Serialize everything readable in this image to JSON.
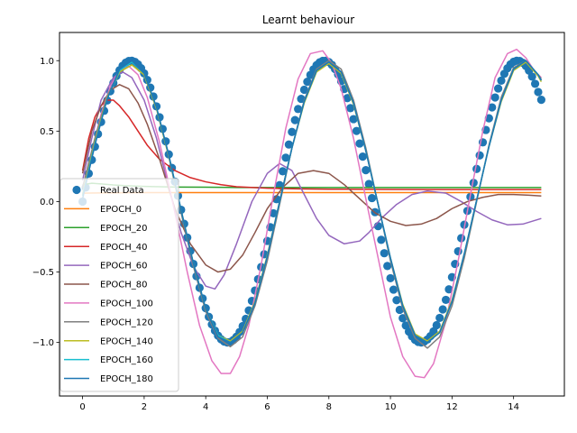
{
  "chart_data": {
    "type": "line",
    "title": "Learnt behaviour",
    "xlabel": "",
    "ylabel": "",
    "xlim": [
      -0.75,
      15.65
    ],
    "ylim": [
      -1.38,
      1.2
    ],
    "grid": false,
    "legend_position": "lower-left",
    "x_ticks": [
      0,
      2,
      4,
      6,
      8,
      10,
      12,
      14
    ],
    "y_ticks": [
      -1.0,
      -0.5,
      0.0,
      0.5,
      1.0
    ],
    "x_tick_labels": [
      "0",
      "2",
      "4",
      "6",
      "8",
      "10",
      "12",
      "14"
    ],
    "y_tick_labels": [
      "−1.0",
      "−0.5",
      "0.0",
      "0.5",
      "1.0"
    ],
    "real_data": {
      "name": "Real Data",
      "color": "#1f77b4",
      "x": [
        0,
        0.1,
        0.2,
        0.3,
        0.4,
        0.5,
        0.6,
        0.7,
        0.8,
        0.9,
        1,
        1.1,
        1.2,
        1.3,
        1.4,
        1.5,
        1.6,
        1.7,
        1.8,
        1.9,
        2,
        2.1,
        2.2,
        2.3,
        2.4,
        2.5,
        2.6,
        2.7,
        2.8,
        2.9,
        3,
        3.1,
        3.2,
        3.3,
        3.4,
        3.5,
        3.6,
        3.7,
        3.8,
        3.9,
        4,
        4.1,
        4.2,
        4.3,
        4.4,
        4.5,
        4.6,
        4.7,
        4.8,
        4.9,
        5,
        5.1,
        5.2,
        5.3,
        5.4,
        5.5,
        5.6,
        5.7,
        5.8,
        5.9,
        6,
        6.1,
        6.2,
        6.3,
        6.4,
        6.5,
        6.6,
        6.7,
        6.8,
        6.9,
        7,
        7.1,
        7.2,
        7.3,
        7.4,
        7.5,
        7.6,
        7.7,
        7.8,
        7.9,
        8,
        8.1,
        8.2,
        8.3,
        8.4,
        8.5,
        8.6,
        8.7,
        8.8,
        8.9,
        9,
        9.1,
        9.2,
        9.3,
        9.4,
        9.5,
        9.6,
        9.7,
        9.8,
        9.9,
        10,
        10.1,
        10.2,
        10.3,
        10.4,
        10.5,
        10.6,
        10.7,
        10.8,
        10.9,
        11,
        11.1,
        11.2,
        11.3,
        11.4,
        11.5,
        11.6,
        11.7,
        11.8,
        11.9,
        12,
        12.1,
        12.2,
        12.3,
        12.4,
        12.5,
        12.6,
        12.7,
        12.8,
        12.9,
        13,
        13.1,
        13.2,
        13.3,
        13.4,
        13.5,
        13.6,
        13.7,
        13.8,
        13.9,
        14,
        14.1,
        14.2,
        14.3,
        14.4,
        14.5,
        14.6,
        14.7,
        14.8,
        14.9
      ],
      "y": [
        0,
        0.0998,
        0.1987,
        0.2955,
        0.3894,
        0.4794,
        0.5646,
        0.6442,
        0.7174,
        0.7833,
        0.8415,
        0.8912,
        0.932,
        0.9636,
        0.9854,
        0.9975,
        0.9996,
        0.9917,
        0.9738,
        0.9463,
        0.9093,
        0.8632,
        0.8085,
        0.7457,
        0.6755,
        0.5985,
        0.5155,
        0.4274,
        0.335,
        0.2392,
        0.1411,
        0.0416,
        -0.0584,
        -0.1577,
        -0.2555,
        -0.3508,
        -0.4425,
        -0.5298,
        -0.6119,
        -0.6878,
        -0.7568,
        -0.8183,
        -0.8716,
        -0.9162,
        -0.9516,
        -0.9775,
        -0.9937,
        -0.9999,
        -0.9962,
        -0.9825,
        -0.9589,
        -0.9258,
        -0.8835,
        -0.8323,
        -0.7728,
        -0.7055,
        -0.6313,
        -0.5507,
        -0.4646,
        -0.3739,
        -0.2794,
        -0.1822,
        -0.0831,
        0.0168,
        0.1165,
        0.2151,
        0.3115,
        0.4048,
        0.4941,
        0.5784,
        0.657,
        0.729,
        0.7937,
        0.8504,
        0.8987,
        0.938,
        0.9679,
        0.9882,
        0.9985,
        0.9989,
        0.9894,
        0.9699,
        0.9407,
        0.9022,
        0.8546,
        0.7985,
        0.7344,
        0.663,
        0.585,
        0.501,
        0.4121,
        0.319,
        0.2229,
        0.1245,
        0.0248,
        -0.0752,
        -0.1743,
        -0.2718,
        -0.3665,
        -0.4575,
        -0.544,
        -0.6251,
        -0.7,
        -0.7683,
        -0.8278,
        -0.8797,
        -0.9233,
        -0.9568,
        -0.9812,
        -0.9961,
        -1,
        -0.9938,
        -0.9792,
        -0.9552,
        -0.9211,
        -0.8775,
        -0.8258,
        -0.7656,
        -0.6977,
        -0.6229,
        -0.5366,
        -0.4426,
        -0.3528,
        -0.2598,
        -0.1646,
        -0.0663,
        0.0336,
        0.133,
        0.2316,
        0.3276,
        0.4202,
        0.5082,
        0.5911,
        0.6684,
        0.7388,
        0.8026,
        0.8585,
        0.9068,
        0.9454,
        0.9741,
        0.9919,
        0.9996,
        0.9978,
        0.9849,
        0.9621,
        0.9293,
        0.8868,
        0.8356,
        0.7776,
        0.7225
      ]
    },
    "series": [
      {
        "name": "EPOCH_0",
        "color": "#ff7f0e",
        "x": [
          0,
          0.5,
          1,
          1.5,
          2,
          3,
          4,
          5,
          6,
          7,
          8,
          9,
          10,
          11,
          12,
          13,
          14,
          14.9
        ],
        "y": [
          0.06,
          0.061,
          0.062,
          0.063,
          0.064,
          0.064,
          0.064,
          0.064,
          0.064,
          0.064,
          0.064,
          0.064,
          0.064,
          0.064,
          0.064,
          0.064,
          0.064,
          0.064
        ]
      },
      {
        "name": "EPOCH_20",
        "color": "#2ca02c",
        "x": [
          0,
          0.3,
          0.6,
          1,
          1.5,
          2,
          2.5,
          3,
          4,
          5,
          6,
          8,
          10,
          12,
          14,
          14.9
        ],
        "y": [
          0.12,
          0.13,
          0.125,
          0.118,
          0.112,
          0.108,
          0.105,
          0.103,
          0.102,
          0.1,
          0.1,
          0.1,
          0.1,
          0.1,
          0.1,
          0.1
        ]
      },
      {
        "name": "EPOCH_40",
        "color": "#d62728",
        "x": [
          0,
          0.2,
          0.4,
          0.6,
          0.8,
          1.0,
          1.2,
          1.5,
          1.8,
          2.1,
          2.5,
          3,
          3.5,
          4,
          4.5,
          5,
          6,
          7,
          8,
          9,
          10,
          12,
          14,
          14.9
        ],
        "y": [
          0.22,
          0.45,
          0.6,
          0.68,
          0.72,
          0.72,
          0.68,
          0.6,
          0.5,
          0.4,
          0.3,
          0.22,
          0.17,
          0.14,
          0.12,
          0.105,
          0.095,
          0.09,
          0.088,
          0.087,
          0.086,
          0.085,
          0.085,
          0.085
        ]
      },
      {
        "name": "EPOCH_60",
        "color": "#9467bd",
        "x": [
          0,
          0.3,
          0.6,
          1.0,
          1.3,
          1.6,
          2.0,
          2.4,
          2.8,
          3.2,
          3.6,
          4.0,
          4.3,
          4.6,
          5.0,
          5.5,
          6.0,
          6.4,
          6.8,
          7.2,
          7.6,
          8.0,
          8.5,
          9.0,
          9.3,
          9.7,
          10.2,
          10.7,
          11.2,
          11.8,
          12.3,
          12.8,
          13.3,
          13.8,
          14.3,
          14.9
        ],
        "y": [
          0.15,
          0.45,
          0.72,
          0.88,
          0.92,
          0.88,
          0.72,
          0.45,
          0.1,
          -0.22,
          -0.46,
          -0.6,
          -0.62,
          -0.52,
          -0.3,
          0.0,
          0.2,
          0.27,
          0.22,
          0.05,
          -0.12,
          -0.24,
          -0.3,
          -0.28,
          -0.22,
          -0.12,
          -0.02,
          0.05,
          0.075,
          0.06,
          0.0,
          -0.07,
          -0.13,
          -0.165,
          -0.16,
          -0.12
        ]
      },
      {
        "name": "EPOCH_80",
        "color": "#8c564b",
        "x": [
          0,
          0.3,
          0.6,
          0.9,
          1.2,
          1.5,
          1.8,
          2.1,
          2.5,
          3.0,
          3.5,
          4.0,
          4.4,
          4.8,
          5.2,
          5.6,
          6.0,
          6.5,
          7.0,
          7.5,
          8.0,
          8.5,
          9.0,
          9.5,
          10.0,
          10.5,
          11.0,
          11.5,
          12.0,
          12.5,
          13.0,
          13.5,
          14.0,
          14.5,
          14.9
        ],
        "y": [
          0.2,
          0.5,
          0.68,
          0.79,
          0.83,
          0.8,
          0.7,
          0.55,
          0.3,
          -0.05,
          -0.3,
          -0.45,
          -0.5,
          -0.48,
          -0.38,
          -0.22,
          -0.05,
          0.1,
          0.2,
          0.22,
          0.2,
          0.12,
          0.02,
          -0.08,
          -0.14,
          -0.17,
          -0.16,
          -0.12,
          -0.05,
          0.0,
          0.03,
          0.05,
          0.05,
          0.045,
          0.04
        ]
      },
      {
        "name": "EPOCH_100",
        "color": "#e377c2",
        "x": [
          0,
          0.3,
          0.6,
          0.9,
          1.2,
          1.5,
          1.8,
          2.1,
          2.5,
          3.0,
          3.4,
          3.8,
          4.2,
          4.5,
          4.8,
          5.1,
          5.4,
          5.8,
          6.2,
          6.6,
          7.0,
          7.4,
          7.8,
          8.1,
          8.4,
          8.8,
          9.2,
          9.6,
          10.0,
          10.4,
          10.8,
          11.1,
          11.4,
          11.8,
          12.2,
          12.6,
          13.0,
          13.4,
          13.8,
          14.1,
          14.4,
          14.7,
          14.9
        ],
        "y": [
          0.05,
          0.35,
          0.62,
          0.82,
          0.93,
          0.96,
          0.9,
          0.74,
          0.42,
          -0.08,
          -0.5,
          -0.88,
          -1.13,
          -1.22,
          -1.22,
          -1.1,
          -0.88,
          -0.45,
          0.05,
          0.52,
          0.87,
          1.05,
          1.07,
          0.98,
          0.8,
          0.45,
          0.02,
          -0.4,
          -0.82,
          -1.1,
          -1.24,
          -1.25,
          -1.15,
          -0.85,
          -0.42,
          0.05,
          0.5,
          0.88,
          1.05,
          1.08,
          1.02,
          0.92,
          0.88
        ]
      },
      {
        "name": "EPOCH_120",
        "color": "#7f7f7f",
        "x": [
          0,
          0.4,
          0.8,
          1.2,
          1.6,
          2.0,
          2.4,
          2.8,
          3.2,
          3.6,
          4.0,
          4.4,
          4.8,
          5.2,
          5.6,
          6.0,
          6.4,
          6.8,
          7.2,
          7.6,
          8.0,
          8.4,
          8.8,
          9.2,
          9.6,
          10.0,
          10.4,
          10.8,
          11.2,
          11.6,
          12.0,
          12.4,
          12.8,
          13.2,
          13.6,
          14.0,
          14.4,
          14.8,
          14.9
        ],
        "y": [
          0.1,
          0.45,
          0.75,
          0.92,
          0.97,
          0.9,
          0.66,
          0.32,
          -0.08,
          -0.46,
          -0.78,
          -0.97,
          -1.03,
          -0.96,
          -0.74,
          -0.42,
          -0.02,
          0.38,
          0.72,
          0.94,
          1.0,
          0.94,
          0.72,
          0.38,
          -0.02,
          -0.42,
          -0.76,
          -0.97,
          -1.04,
          -0.96,
          -0.74,
          -0.4,
          0.0,
          0.4,
          0.74,
          0.95,
          1.0,
          0.9,
          0.87
        ]
      },
      {
        "name": "EPOCH_140",
        "color": "#bcbd22",
        "x": [
          0,
          0.4,
          0.8,
          1.2,
          1.6,
          2.0,
          2.4,
          2.8,
          3.2,
          3.6,
          4.0,
          4.4,
          4.8,
          5.2,
          5.6,
          6.0,
          6.4,
          6.8,
          7.2,
          7.6,
          8.0,
          8.4,
          8.8,
          9.2,
          9.6,
          10.0,
          10.4,
          10.8,
          11.2,
          11.6,
          12.0,
          12.4,
          12.8,
          13.2,
          13.6,
          14.0,
          14.4,
          14.8,
          14.9
        ],
        "y": [
          0.05,
          0.42,
          0.74,
          0.92,
          0.97,
          0.9,
          0.66,
          0.32,
          -0.06,
          -0.44,
          -0.76,
          -0.95,
          -0.99,
          -0.92,
          -0.71,
          -0.38,
          0.0,
          0.38,
          0.7,
          0.92,
          0.98,
          0.91,
          0.69,
          0.36,
          -0.02,
          -0.4,
          -0.73,
          -0.94,
          -0.99,
          -0.92,
          -0.7,
          -0.37,
          0.01,
          0.39,
          0.71,
          0.93,
          0.99,
          0.89,
          0.85
        ]
      },
      {
        "name": "EPOCH_160",
        "color": "#17becf",
        "x": [
          0,
          0.4,
          0.8,
          1.2,
          1.6,
          2.0,
          2.4,
          2.8,
          3.2,
          3.6,
          4.0,
          4.4,
          4.8,
          5.2,
          5.6,
          6.0,
          6.4,
          6.8,
          7.2,
          7.6,
          8.0,
          8.4,
          8.8,
          9.2,
          9.6,
          10.0,
          10.4,
          10.8,
          11.2,
          11.6,
          12.0,
          12.4,
          12.8,
          13.2,
          13.6,
          14.0,
          14.4,
          14.8,
          14.9
        ],
        "y": [
          0.04,
          0.41,
          0.73,
          0.93,
          0.99,
          0.91,
          0.67,
          0.33,
          -0.06,
          -0.44,
          -0.76,
          -0.95,
          -1.0,
          -0.93,
          -0.72,
          -0.39,
          0.0,
          0.38,
          0.71,
          0.93,
          0.99,
          0.92,
          0.7,
          0.36,
          -0.02,
          -0.4,
          -0.74,
          -0.95,
          -1.0,
          -0.93,
          -0.71,
          -0.37,
          0.01,
          0.39,
          0.72,
          0.94,
          1.0,
          0.9,
          0.86
        ]
      },
      {
        "name": "EPOCH_180",
        "color": "#1f77b4",
        "x": [
          0,
          0.4,
          0.8,
          1.2,
          1.6,
          2.0,
          2.4,
          2.8,
          3.2,
          3.6,
          4.0,
          4.4,
          4.8,
          5.2,
          5.6,
          6.0,
          6.4,
          6.8,
          7.2,
          7.6,
          8.0,
          8.4,
          8.8,
          9.2,
          9.6,
          10.0,
          10.4,
          10.8,
          11.2,
          11.6,
          12.0,
          12.4,
          12.8,
          13.2,
          13.6,
          14.0,
          14.4,
          14.8,
          14.9
        ],
        "y": [
          0.02,
          0.4,
          0.73,
          0.94,
          1.0,
          0.91,
          0.67,
          0.33,
          -0.06,
          -0.44,
          -0.76,
          -0.96,
          -1.0,
          -0.93,
          -0.72,
          -0.39,
          0.0,
          0.38,
          0.71,
          0.93,
          0.99,
          0.92,
          0.7,
          0.36,
          -0.02,
          -0.4,
          -0.74,
          -0.95,
          -1.0,
          -0.93,
          -0.71,
          -0.37,
          0.01,
          0.39,
          0.72,
          0.94,
          1.0,
          0.9,
          0.86
        ]
      }
    ]
  }
}
